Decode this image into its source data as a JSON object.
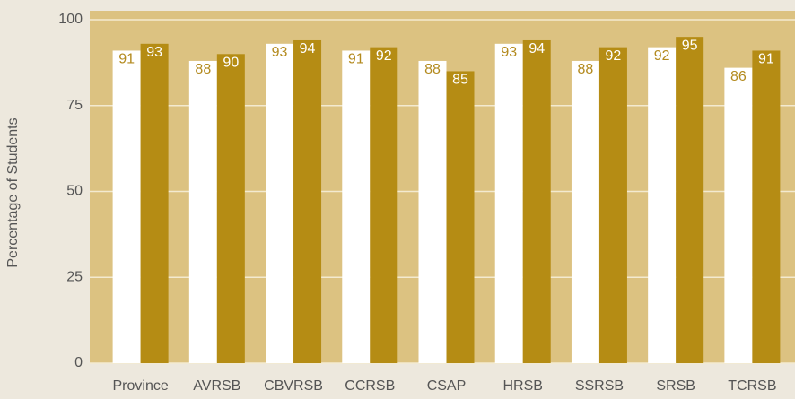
{
  "chart_data": {
    "type": "bar",
    "y_label": "Percentage of Students",
    "categories": [
      "Province",
      "AVRSB",
      "CBVRSB",
      "CCRSB",
      "CSAP",
      "HRSB",
      "SSRSB",
      "SRSB",
      "TCRSB"
    ],
    "series": [
      {
        "color": "#ffffff",
        "label_color": "#b38a1e",
        "values": [
          91,
          88,
          93,
          91,
          88,
          93,
          88,
          92,
          86
        ]
      },
      {
        "color": "#b58c14",
        "label_color": "#ffffff",
        "values": [
          93,
          90,
          94,
          92,
          85,
          94,
          92,
          95,
          91
        ]
      }
    ],
    "ylim": [
      0,
      100
    ],
    "yticks": [
      0,
      25,
      50,
      75,
      100
    ],
    "grid": true,
    "plot_background": "#dcc281",
    "grid_color": "#f3ead0"
  }
}
